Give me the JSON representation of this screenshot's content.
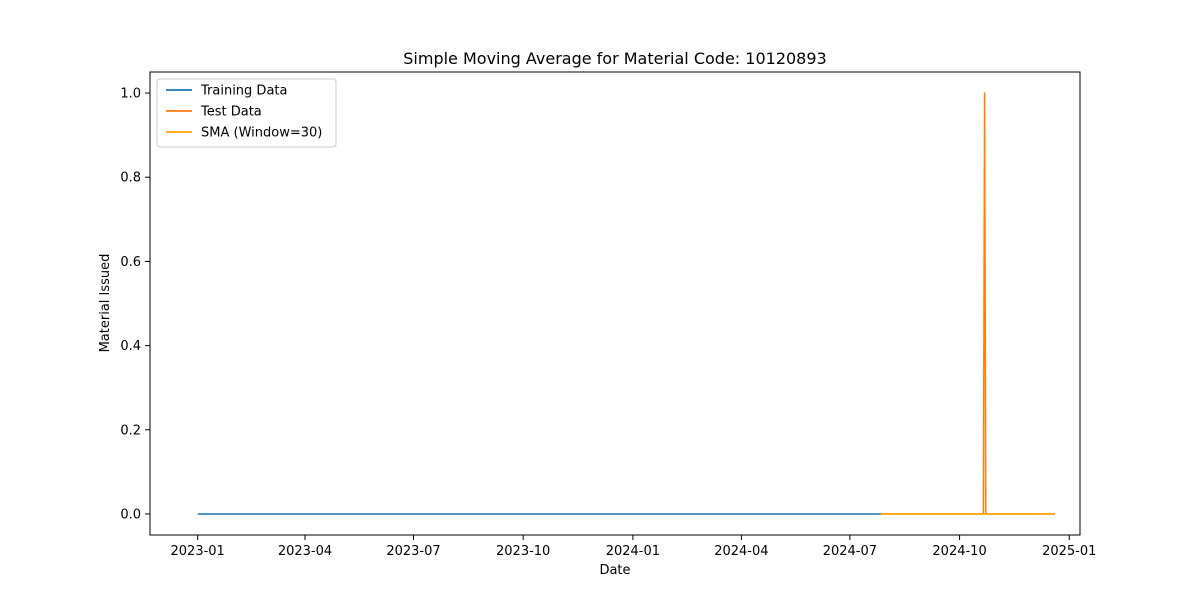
{
  "chart_data": {
    "type": "line",
    "title": "Simple Moving Average for Material Code: 10120893",
    "xlabel": "Date",
    "ylabel": "Material Issued",
    "x_type": "date",
    "xlim": [
      "2022-11-22",
      "2025-01-10"
    ],
    "ylim": [
      -0.05,
      1.05
    ],
    "x_ticks": [
      "2023-01",
      "2023-04",
      "2023-07",
      "2023-10",
      "2024-01",
      "2024-04",
      "2024-07",
      "2024-10",
      "2025-01"
    ],
    "y_ticks": [
      "0.0",
      "0.2",
      "0.4",
      "0.6",
      "0.8",
      "1.0"
    ],
    "grid": false,
    "legend": "upper-left",
    "series": [
      {
        "name": "Training Data",
        "color": "#1f77b4",
        "points": [
          {
            "x": "2023-01-01",
            "y": 0
          },
          {
            "x": "2024-07-27",
            "y": 0
          }
        ]
      },
      {
        "name": "Test Data",
        "color": "#ff7f0e",
        "points": [
          {
            "x": "2024-07-27",
            "y": 0
          },
          {
            "x": "2024-10-21",
            "y": 0
          },
          {
            "x": "2024-10-22",
            "y": 1
          },
          {
            "x": "2024-10-23",
            "y": 0
          },
          {
            "x": "2024-12-20",
            "y": 0
          }
        ]
      },
      {
        "name": "SMA (Window=30)",
        "color": "#ffa500",
        "points": [
          {
            "x": "2024-07-27",
            "y": 0
          },
          {
            "x": "2024-12-20",
            "y": 0
          }
        ]
      }
    ]
  }
}
